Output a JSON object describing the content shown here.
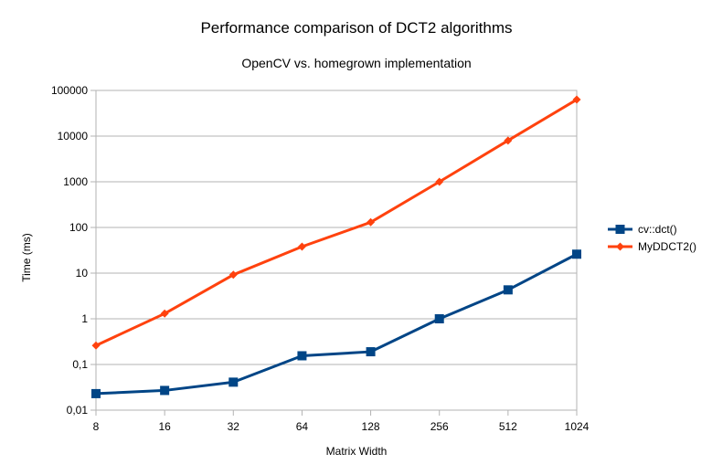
{
  "chart_data": {
    "type": "line",
    "title": "Performance comparison of DCT2 algorithms",
    "subtitle": "OpenCV vs. homegrown implementation",
    "xlabel": "Matrix Width",
    "ylabel": "Time (ms)",
    "y_scale": "log",
    "ylim": [
      0.01,
      100000
    ],
    "y_ticks": [
      "0,01",
      "0,1",
      "1",
      "10",
      "100",
      "1000",
      "10000",
      "100000"
    ],
    "categories": [
      "8",
      "16",
      "32",
      "64",
      "128",
      "256",
      "512",
      "1024"
    ],
    "grid": "horizontal",
    "legend_position": "right",
    "series": [
      {
        "name": "cv::dct()",
        "color": "#004586",
        "marker": "square",
        "values": [
          0.023,
          0.027,
          0.041,
          0.155,
          0.19,
          1.0,
          4.3,
          26
        ]
      },
      {
        "name": "MyDDCT2()",
        "color": "#ff420e",
        "marker": "diamond",
        "values": [
          0.26,
          1.3,
          9.2,
          38,
          130,
          1000,
          8000,
          63000
        ]
      }
    ]
  }
}
